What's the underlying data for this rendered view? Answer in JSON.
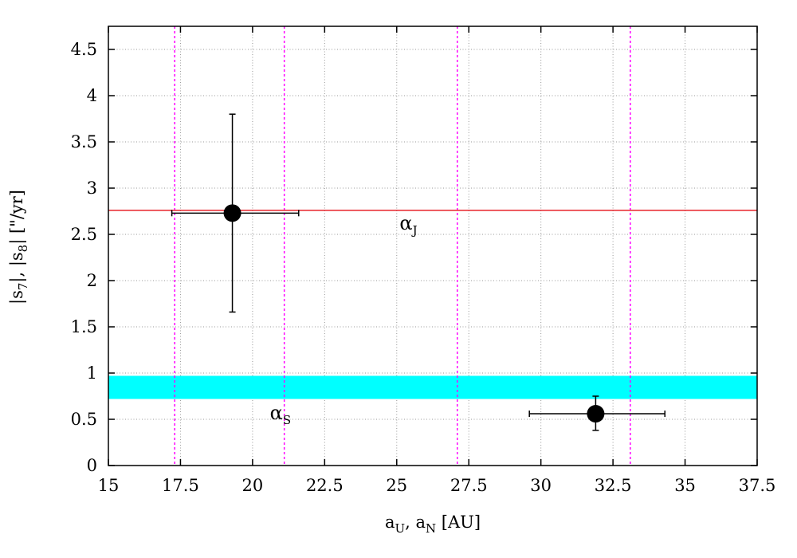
{
  "chart_data": {
    "type": "scatter",
    "title": "",
    "xlabel": "a_U, a_N [AU]",
    "ylabel": "|s_7|, |s_8| [\"/yr]",
    "xlabel_parts": {
      "a": "a",
      "sub_U": "U",
      "sep": ", a",
      "sub_N": "N",
      "tail": " [AU]"
    },
    "ylabel_parts": {
      "p1": "|s",
      "sub7": "7",
      "p2": "|, |s",
      "sub8": "8",
      "p3": "| [\"/yr]"
    },
    "xlim": [
      15,
      37.5
    ],
    "ylim": [
      0,
      4.75
    ],
    "xticks": [
      15,
      17.5,
      20,
      22.5,
      25,
      27.5,
      30,
      32.5,
      35,
      37.5
    ],
    "xtick_labels": [
      "15",
      "17.5",
      "20",
      "22.5",
      "25",
      "27.5",
      "30",
      "32.5",
      "35",
      "37.5"
    ],
    "yticks": [
      0,
      0.5,
      1,
      1.5,
      2,
      2.5,
      3,
      3.5,
      4,
      4.5
    ],
    "ytick_labels": [
      "0",
      "0.5",
      "1",
      "1.5",
      "2",
      "2.5",
      "3",
      "3.5",
      "4",
      "4.5"
    ],
    "grid": true,
    "points": [
      {
        "x": 19.3,
        "y": 2.73,
        "xerr": [
          17.2,
          21.6
        ],
        "yerr": [
          1.66,
          3.8
        ]
      },
      {
        "x": 31.9,
        "y": 0.56,
        "xerr": [
          29.6,
          34.3
        ],
        "yerr": [
          0.38,
          0.75
        ]
      }
    ],
    "hlines": [
      {
        "y": 2.76,
        "color": "#e8232a"
      }
    ],
    "bands": [
      {
        "y0": 0.72,
        "y1": 0.97,
        "color": "#00ffff"
      }
    ],
    "vlines": [
      {
        "x": 17.3,
        "color": "#ff00ff"
      },
      {
        "x": 21.1,
        "color": "#ff00ff"
      },
      {
        "x": 27.1,
        "color": "#ff00ff"
      },
      {
        "x": 33.1,
        "color": "#ff00ff"
      }
    ],
    "annotations": [
      {
        "base": "α",
        "sub": "J",
        "x": 25.1,
        "y": 2.55
      },
      {
        "base": "α",
        "sub": "S",
        "x": 20.6,
        "y": 0.5
      }
    ]
  }
}
